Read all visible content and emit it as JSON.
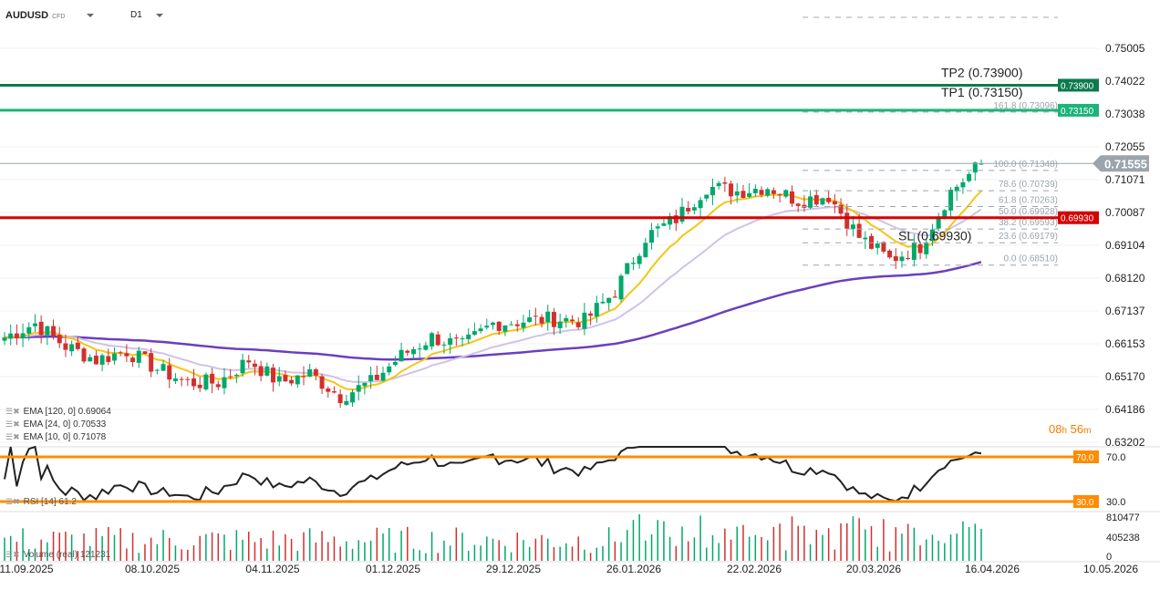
{
  "header": {
    "symbol": "AUDUSD",
    "type": "CFD",
    "interval": "D1"
  },
  "countdown": {
    "hours": "08",
    "h": "h",
    "minutes": "56",
    "m": "m"
  },
  "indicators": [
    {
      "label": "EMA [120, 0] 0.69064",
      "color": "#6a3fbf",
      "period": 120
    },
    {
      "label": "EMA [24, 0] 0.70533",
      "color": "#cfc3e6",
      "period": 24
    },
    {
      "label": "EMA [10, 0] 0.71078",
      "color": "#f5c518",
      "period": 10
    }
  ],
  "rsi": {
    "label": "RSI [14] 61.2",
    "upper": "70.0",
    "lower": "30.0",
    "upper_val": 70,
    "lower_val": 30,
    "level_color": "#ff8c00"
  },
  "volume": {
    "label": "Volume (real) 121231",
    "ticks": [
      "810477",
      "405238",
      "0"
    ]
  },
  "chart_data": {
    "type": "candlestick",
    "y_ticks": [
      "0.75005",
      "0.74022",
      "0.73038",
      "0.72055",
      "0.71071",
      "0.70087",
      "0.69104",
      "0.68120",
      "0.67137",
      "0.66153",
      "0.65170",
      "0.64186",
      "0.63202"
    ],
    "ylim": [
      0.63202,
      0.75005
    ],
    "x_ticks": [
      "11.09.2025",
      "08.10.2025",
      "04.11.2025",
      "01.12.2025",
      "29.12.2025",
      "26.01.2026",
      "22.02.2026",
      "20.03.2026",
      "16.04.2026",
      "10.05.2026"
    ],
    "current_price": "0.71555",
    "weekly_closes": [
      0.6635,
      0.6676,
      0.6608,
      0.6567,
      0.6594,
      0.654,
      0.6499,
      0.6499,
      0.6567,
      0.6499,
      0.6526,
      0.6458,
      0.6499,
      0.658,
      0.6635,
      0.6608,
      0.6676,
      0.6684,
      0.669,
      0.6684,
      0.6772,
      0.6935,
      0.699,
      0.7086,
      0.7072,
      0.7086,
      0.7045,
      0.7059,
      0.6935,
      0.6867,
      0.6908,
      0.7072,
      0.7155
    ],
    "levels": [
      {
        "label": "TP2 (0.73900)",
        "tag": "0.73900",
        "price": 0.739,
        "color": "#0d7a4e"
      },
      {
        "label": "TP1 (0.73150)",
        "tag": "0.73150",
        "price": 0.7315,
        "color": "#1db37a"
      },
      {
        "label": "SL (0.69930)",
        "tag": "0.69930",
        "price": 0.6993,
        "color": "#d50000"
      }
    ],
    "fibonacci": [
      {
        "label": "161.8 (0.73096)",
        "price": 0.73096
      },
      {
        "label": "100.0 (0.71348)",
        "price": 0.71348
      },
      {
        "label": "78.6 (0.70739)",
        "price": 0.70739
      },
      {
        "label": "61.8 (0.70263)",
        "price": 0.70263
      },
      {
        "label": "50.0 (0.69928)",
        "price": 0.69928
      },
      {
        "label": "38.2 (0.69593)",
        "price": 0.69593
      },
      {
        "label": "23.6 (0.69179)",
        "price": 0.69179
      },
      {
        "label": "0.0 (0.68510)",
        "price": 0.6851
      }
    ],
    "colors": {
      "up": "#00a86b",
      "down": "#d32f2f"
    }
  }
}
